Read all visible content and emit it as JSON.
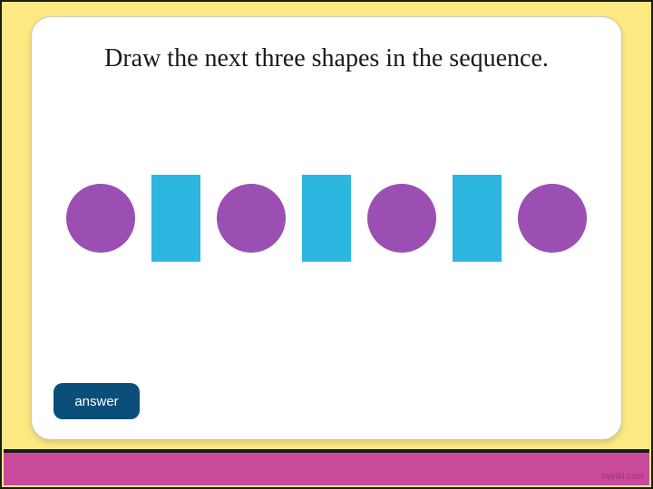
{
  "background_color": "#fde982",
  "frame_border_color": "#1a1a1a",
  "card": {
    "background_color": "#ffffff",
    "border_radius": 22
  },
  "question": {
    "text": "Draw the next three shapes in the sequence.",
    "fontsize": 28,
    "color": "#1a1a1a"
  },
  "sequence": {
    "shapes": [
      {
        "type": "circle",
        "color": "#9b4fb3"
      },
      {
        "type": "rect",
        "color": "#2cb6e0"
      },
      {
        "type": "circle",
        "color": "#9b4fb3"
      },
      {
        "type": "rect",
        "color": "#2cb6e0"
      },
      {
        "type": "circle",
        "color": "#9b4fb3"
      },
      {
        "type": "rect",
        "color": "#2cb6e0"
      },
      {
        "type": "circle",
        "color": "#9b4fb3"
      }
    ],
    "circle_diameter": 76,
    "rect_width": 54,
    "rect_height": 96,
    "gap": 18
  },
  "answer_button": {
    "label": "answer",
    "background_color": "#0a4e7a",
    "text_color": "#ffffff"
  },
  "bottom_stripe": {
    "color": "#c94a9a",
    "divider_color": "#1a1a1a"
  },
  "watermark": "twinkl.com"
}
